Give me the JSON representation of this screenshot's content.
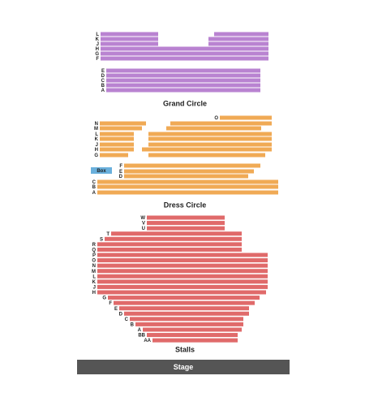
{
  "sections": [
    {
      "name": "Grand Circle",
      "rows": [
        "L",
        "K",
        "J",
        "H",
        "G",
        "F",
        "E",
        "D",
        "C",
        "B",
        "A"
      ]
    },
    {
      "name": "Dress Circle",
      "rows": [
        "O",
        "N",
        "M",
        "L",
        "K",
        "J",
        "H",
        "G",
        "F",
        "E",
        "D",
        "C",
        "B",
        "A"
      ]
    },
    {
      "name": "Stalls",
      "rows": [
        "W",
        "V",
        "U",
        "T",
        "S",
        "R",
        "Q",
        "P",
        "O",
        "N",
        "M",
        "L",
        "K",
        "J",
        "H",
        "G",
        "F",
        "E",
        "D",
        "C",
        "B",
        "A",
        "BB",
        "AA"
      ]
    }
  ],
  "box": "Box",
  "stage": "Stage"
}
